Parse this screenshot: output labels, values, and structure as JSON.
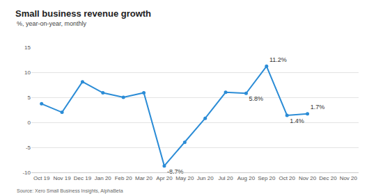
{
  "chart_data": {
    "type": "line",
    "title": "Small business revenue growth",
    "subtitle": "%, year-on-year, monthly",
    "source": "Source: Xero Small Business Insights, AlphaBeta",
    "categories": [
      "Oct 19",
      "Nov 19",
      "Dec 19",
      "Jan 20",
      "Feb 20",
      "Mar 20",
      "Apr 20",
      "May 20",
      "Jun 20",
      "Jul 20",
      "Aug 20",
      "Sep 20",
      "Oct 20",
      "Nov 20",
      "Dec 20",
      "Nov 20"
    ],
    "values": [
      3.7,
      2.0,
      8.1,
      5.9,
      5.0,
      5.9,
      -8.7,
      -4.0,
      0.8,
      6.0,
      5.8,
      11.2,
      1.4,
      1.7,
      null,
      null
    ],
    "value_labels": [
      null,
      null,
      null,
      null,
      null,
      null,
      "-8.7%",
      null,
      null,
      null,
      "5.8%",
      "11.2%",
      "1.4%",
      "1.7%",
      null,
      null
    ],
    "data_labels": true,
    "color": "#2b8cd6",
    "marker": "circle",
    "ylim": [
      -10,
      15
    ],
    "yticks": [
      -10,
      -5,
      0,
      5,
      10,
      15
    ],
    "grid": true
  }
}
